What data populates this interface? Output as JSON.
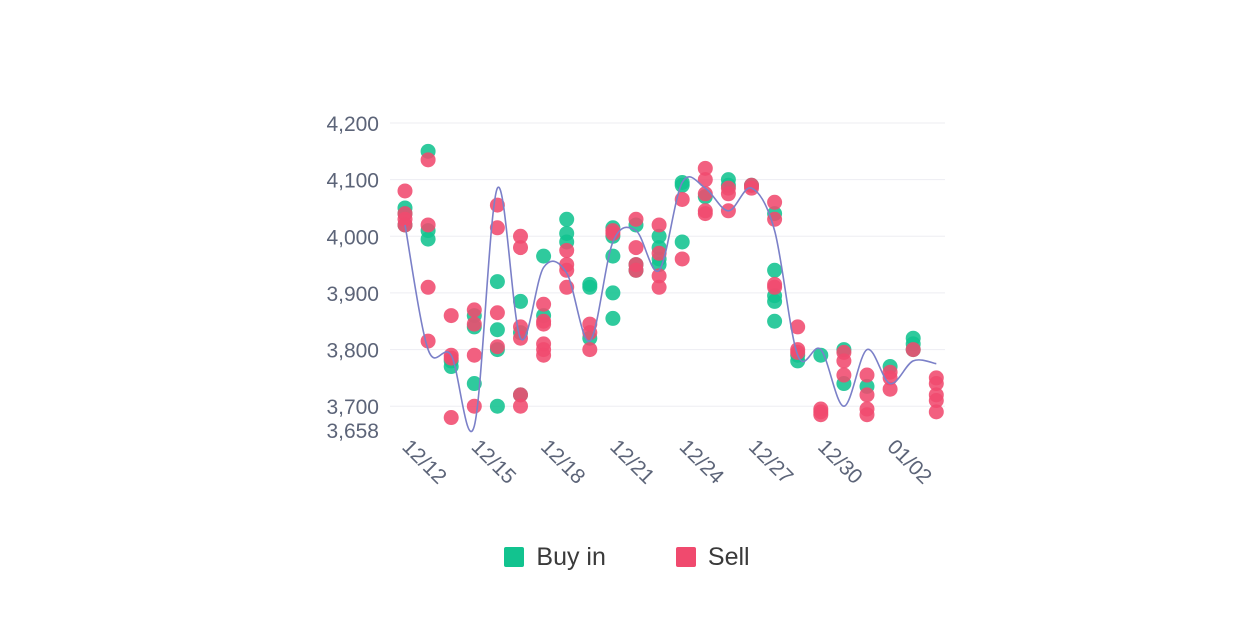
{
  "chart_data": {
    "type": "scatter",
    "title": "",
    "xlabel": "",
    "ylabel": "",
    "ylim": [
      3658,
      4200
    ],
    "y_ticks": [
      "4,200",
      "4,100",
      "4,000",
      "3,900",
      "3,800",
      "3,700",
      "3,658"
    ],
    "y_tick_values": [
      4200,
      4100,
      4000,
      3900,
      3800,
      3700,
      3658
    ],
    "x_ticks": [
      "12/12",
      "12/15",
      "12/18",
      "12/21",
      "12/24",
      "12/27",
      "12/30",
      "01/02"
    ],
    "x": [
      "12/12",
      "12/13",
      "12/14",
      "12/15",
      "12/16",
      "12/17",
      "12/18",
      "12/19",
      "12/20",
      "12/21",
      "12/22",
      "12/23",
      "12/24",
      "12/25",
      "12/26",
      "12/27",
      "12/28",
      "12/29",
      "12/30",
      "12/31",
      "01/01",
      "01/02",
      "01/03"
    ],
    "grid": true,
    "legend_position": "bottom",
    "series": [
      {
        "name": "Buy in",
        "color": "#12c38f",
        "points": [
          {
            "x": "12/12",
            "values": [
              4050,
              4040,
              4020
            ]
          },
          {
            "x": "12/13",
            "values": [
              4150,
              4010,
              3995
            ]
          },
          {
            "x": "12/14",
            "values": [
              3770,
              3780
            ]
          },
          {
            "x": "12/15",
            "values": [
              3860,
              3840,
              3740
            ]
          },
          {
            "x": "12/16",
            "values": [
              3920,
              3835,
              3800,
              3700
            ]
          },
          {
            "x": "12/17",
            "values": [
              3885,
              3830,
              3720
            ]
          },
          {
            "x": "12/18",
            "values": [
              3965,
              3860
            ]
          },
          {
            "x": "12/19",
            "values": [
              4030,
              4005,
              3990
            ]
          },
          {
            "x": "12/20",
            "values": [
              3915,
              3910,
              3820
            ]
          },
          {
            "x": "12/21",
            "values": [
              4015,
              4000,
              3965,
              3900,
              3855
            ]
          },
          {
            "x": "12/22",
            "values": [
              4020,
              3950,
              3940
            ]
          },
          {
            "x": "12/23",
            "values": [
              4000,
              3980,
              3960,
              3950
            ]
          },
          {
            "x": "12/24",
            "values": [
              4095,
              4090,
              3990
            ]
          },
          {
            "x": "12/25",
            "values": [
              4070
            ]
          },
          {
            "x": "12/26",
            "values": [
              4100,
              4090
            ]
          },
          {
            "x": "12/27",
            "values": [
              4090
            ]
          },
          {
            "x": "12/28",
            "values": [
              4040,
              3940,
              3895,
              3885,
              3850
            ]
          },
          {
            "x": "12/29",
            "values": [
              3780,
              3790
            ]
          },
          {
            "x": "12/30",
            "values": [
              3790
            ]
          },
          {
            "x": "12/31",
            "values": [
              3800,
              3740
            ]
          },
          {
            "x": "01/01",
            "values": [
              3735
            ]
          },
          {
            "x": "01/02",
            "values": [
              3770
            ]
          },
          {
            "x": "01/03",
            "values": [
              3820,
              3810,
              3800
            ]
          }
        ]
      },
      {
        "name": "Sell",
        "color": "#f04a6e",
        "points": [
          {
            "x": "12/12",
            "values": [
              4080,
              4040,
              4030,
              4020
            ]
          },
          {
            "x": "12/13",
            "values": [
              4135,
              4020,
              3910,
              3815
            ]
          },
          {
            "x": "12/14",
            "values": [
              3860,
              3790,
              3785,
              3680
            ]
          },
          {
            "x": "12/15",
            "values": [
              3870,
              3845,
              3790,
              3700
            ]
          },
          {
            "x": "12/16",
            "values": [
              4055,
              4015,
              3865,
              3805
            ]
          },
          {
            "x": "12/17",
            "values": [
              4000,
              3980,
              3840,
              3820,
              3720,
              3700
            ]
          },
          {
            "x": "12/18",
            "values": [
              3880,
              3850,
              3845,
              3810,
              3800,
              3790
            ]
          },
          {
            "x": "12/19",
            "values": [
              3975,
              3950,
              3940,
              3910
            ]
          },
          {
            "x": "12/20",
            "values": [
              3845,
              3830,
              3800
            ]
          },
          {
            "x": "12/21",
            "values": [
              4010,
              4005
            ]
          },
          {
            "x": "12/22",
            "values": [
              4030,
              3980,
              3950,
              3940
            ]
          },
          {
            "x": "12/23",
            "values": [
              4020,
              3970,
              3930,
              3910
            ]
          },
          {
            "x": "12/24",
            "values": [
              4065,
              3960
            ]
          },
          {
            "x": "12/25",
            "values": [
              4120,
              4100,
              4075,
              4045,
              4040
            ]
          },
          {
            "x": "12/26",
            "values": [
              4085,
              4075,
              4045
            ]
          },
          {
            "x": "12/27",
            "values": [
              4090,
              4085
            ]
          },
          {
            "x": "12/28",
            "values": [
              4060,
              4030,
              3915,
              3910
            ]
          },
          {
            "x": "12/29",
            "values": [
              3840,
              3800,
              3795
            ]
          },
          {
            "x": "12/30",
            "values": [
              3695,
              3690,
              3685
            ]
          },
          {
            "x": "12/31",
            "values": [
              3795,
              3780,
              3755
            ]
          },
          {
            "x": "01/01",
            "values": [
              3755,
              3720,
              3695,
              3685
            ]
          },
          {
            "x": "01/02",
            "values": [
              3760,
              3750,
              3730
            ]
          },
          {
            "x": "01/03",
            "values": [
              3800
            ]
          },
          {
            "x": "01/04",
            "values": [
              3750,
              3740,
              3720,
              3710,
              3690
            ]
          }
        ]
      },
      {
        "name": "",
        "type": "line",
        "color": "#7b80c8",
        "smooth": true,
        "points": [
          {
            "x": "12/12",
            "value": 4020
          },
          {
            "x": "12/13",
            "value": 3800
          },
          {
            "x": "12/14",
            "value": 3790
          },
          {
            "x": "12/15",
            "value": 3665
          },
          {
            "x": "12/16",
            "value": 4085
          },
          {
            "x": "12/17",
            "value": 3820
          },
          {
            "x": "12/18",
            "value": 3945
          },
          {
            "x": "12/19",
            "value": 3935
          },
          {
            "x": "12/20",
            "value": 3815
          },
          {
            "x": "12/21",
            "value": 3990
          },
          {
            "x": "12/22",
            "value": 4010
          },
          {
            "x": "12/23",
            "value": 3940
          },
          {
            "x": "12/24",
            "value": 4095
          },
          {
            "x": "12/25",
            "value": 4085
          },
          {
            "x": "12/26",
            "value": 4045
          },
          {
            "x": "12/27",
            "value": 4085
          },
          {
            "x": "12/28",
            "value": 4010
          },
          {
            "x": "12/29",
            "value": 3790
          },
          {
            "x": "12/30",
            "value": 3800
          },
          {
            "x": "12/31",
            "value": 3700
          },
          {
            "x": "01/01",
            "value": 3800
          },
          {
            "x": "01/02",
            "value": 3740
          },
          {
            "x": "01/03",
            "value": 3780
          },
          {
            "x": "01/04",
            "value": 3775
          }
        ]
      }
    ]
  },
  "legend": {
    "items": [
      {
        "label": "Buy in",
        "color": "#12c38f"
      },
      {
        "label": "Sell",
        "color": "#f04a6e"
      }
    ]
  }
}
